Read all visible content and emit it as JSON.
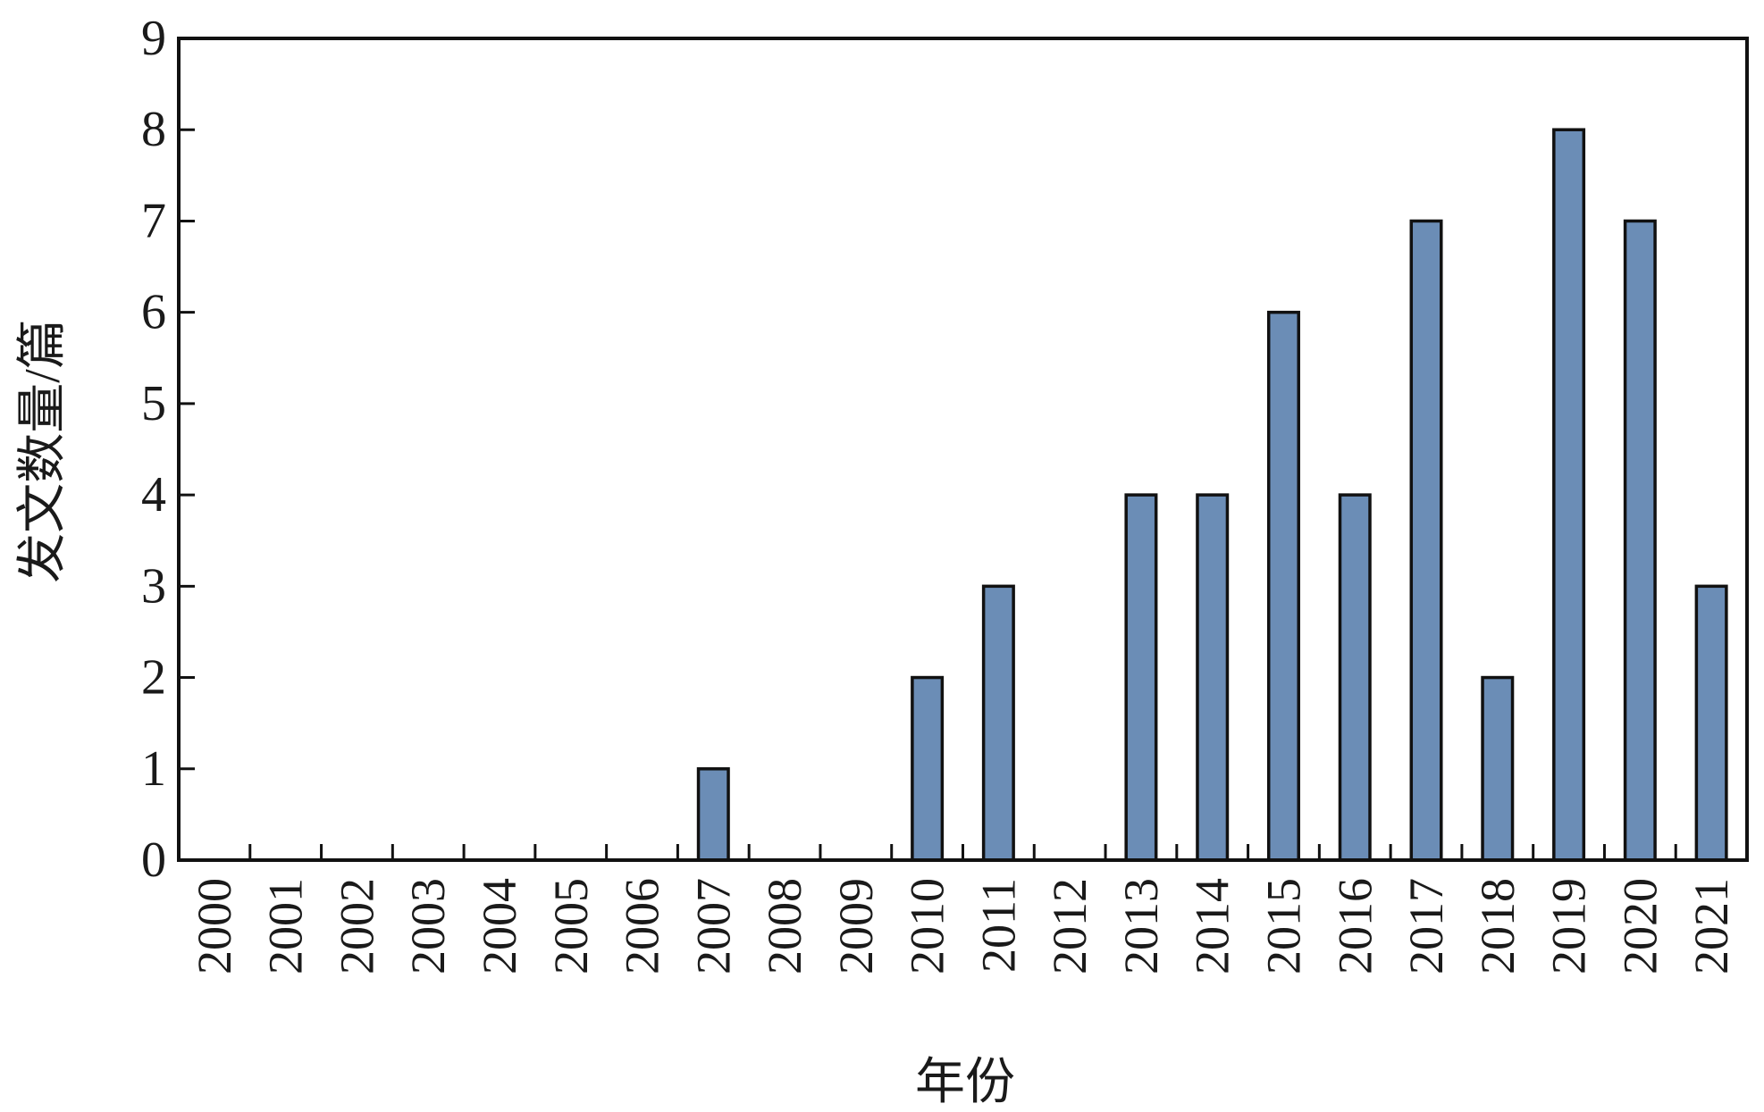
{
  "chart_data": {
    "type": "bar",
    "title": "",
    "xlabel": "年份",
    "ylabel": "发文数量/篇",
    "categories": [
      "2000",
      "2001",
      "2002",
      "2003",
      "2004",
      "2005",
      "2006",
      "2007",
      "2008",
      "2009",
      "2010",
      "2011",
      "2012",
      "2013",
      "2014",
      "2015",
      "2016",
      "2017",
      "2018",
      "2019",
      "2020",
      "2021"
    ],
    "values": [
      0,
      0,
      0,
      0,
      0,
      0,
      0,
      1,
      0,
      0,
      2,
      3,
      0,
      4,
      4,
      6,
      4,
      7,
      2,
      8,
      7,
      3
    ],
    "ylim": [
      0,
      9
    ],
    "yticks": [
      "0",
      "1",
      "2",
      "3",
      "4",
      "5",
      "6",
      "7",
      "8",
      "9"
    ],
    "grid": false,
    "legend": "none",
    "colors": {
      "bar_fill": "#6b8db6",
      "bar_stroke": "#111111",
      "axis": "#111111",
      "background": "#ffffff"
    }
  }
}
